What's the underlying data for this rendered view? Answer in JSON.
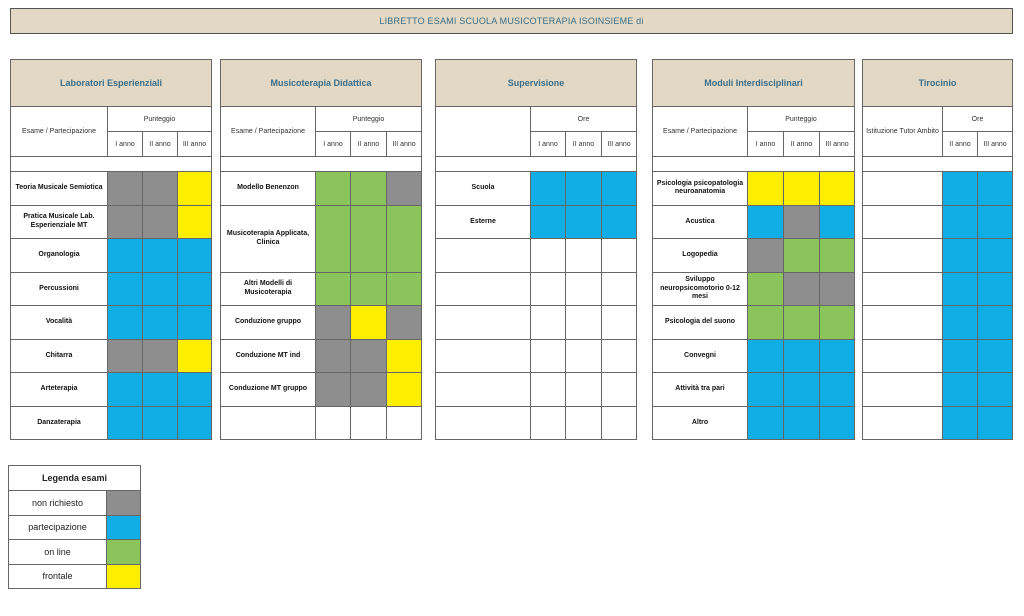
{
  "title": "LIBRETTO ESAMI SCUOLA MUSICOTERAPIA ISOINSIEME di",
  "colors": {
    "grey": "#8e8e8e",
    "blue": "#11aee6",
    "green": "#8bc45a",
    "yellow": "#ffee00",
    "white": "#ffffff"
  },
  "panels": [
    {
      "title": "Laboratori Esperienziali",
      "first_col_header": "Esame / Partecipazione",
      "group_header": "Punteggio",
      "years": [
        "I anno",
        "II anno",
        "III anno"
      ],
      "rows": [
        {
          "label": "Teoria Musicale Semiotica",
          "cells": [
            "grey",
            "grey",
            "yellow"
          ]
        },
        {
          "label": "Pratica Musicale Lab. Esperienziale MT",
          "cells": [
            "grey",
            "grey",
            "yellow"
          ]
        },
        {
          "label": "Organologia",
          "cells": [
            "blue",
            "blue",
            "blue"
          ]
        },
        {
          "label": "Percussioni",
          "cells": [
            "blue",
            "blue",
            "blue"
          ]
        },
        {
          "label": "Vocalità",
          "cells": [
            "blue",
            "blue",
            "blue"
          ]
        },
        {
          "label": "Chitarra",
          "cells": [
            "grey",
            "grey",
            "yellow"
          ]
        },
        {
          "label": "Arteterapia",
          "cells": [
            "blue",
            "blue",
            "blue"
          ]
        },
        {
          "label": "Danzaterapia",
          "cells": [
            "blue",
            "blue",
            "blue"
          ]
        }
      ]
    },
    {
      "title": "Musicoterapia Didattica",
      "first_col_header": "Esame / Partecipazione",
      "group_header": "Punteggio",
      "years": [
        "I anno",
        "II anno",
        "III anno"
      ],
      "rows": [
        {
          "label": "Modello Benenzon",
          "cells": [
            "green",
            "green",
            "grey"
          ]
        },
        {
          "label": "Musicoterapia Applicata, Clinica",
          "span": 2,
          "cells": [
            "green",
            "green",
            "green"
          ]
        },
        {
          "label": "Altri Modelli di Musicoterapia",
          "cells": [
            "green",
            "green",
            "green"
          ]
        },
        {
          "label": "Conduzione gruppo",
          "cells": [
            "grey",
            "yellow",
            "grey"
          ]
        },
        {
          "label": "Conduzione MT ind",
          "cells": [
            "grey",
            "grey",
            "yellow"
          ]
        },
        {
          "label": "Conduzione MT gruppo",
          "cells": [
            "grey",
            "grey",
            "yellow"
          ]
        },
        {
          "label": "",
          "cells": [
            "white",
            "white",
            "white"
          ]
        }
      ]
    },
    {
      "title": "Supervisione",
      "first_col_header": "",
      "group_header": "Ore",
      "years": [
        "I anno",
        "II anno",
        "III anno"
      ],
      "rows": [
        {
          "label": "Scuola",
          "cells": [
            "blue",
            "blue",
            "blue"
          ]
        },
        {
          "label": "Esterne",
          "cells": [
            "blue",
            "blue",
            "blue"
          ]
        },
        {
          "label": "",
          "cells": [
            "white",
            "white",
            "white"
          ]
        },
        {
          "label": "",
          "cells": [
            "white",
            "white",
            "white"
          ]
        },
        {
          "label": "",
          "cells": [
            "white",
            "white",
            "white"
          ]
        },
        {
          "label": "",
          "cells": [
            "white",
            "white",
            "white"
          ]
        },
        {
          "label": "",
          "cells": [
            "white",
            "white",
            "white"
          ]
        },
        {
          "label": "",
          "cells": [
            "white",
            "white",
            "white"
          ]
        }
      ]
    },
    {
      "title": "Moduli Interdisciplinari",
      "first_col_header": "Esame / Partecipazione",
      "group_header": "Punteggio",
      "years": [
        "I anno",
        "II anno",
        "III anno"
      ],
      "rows": [
        {
          "label": "Psicologia psicopatologia neuroanatomia",
          "cells": [
            "yellow",
            "yellow",
            "yellow"
          ]
        },
        {
          "label": "Acustica",
          "cells": [
            "blue",
            "grey",
            "blue"
          ]
        },
        {
          "label": "Logopedia",
          "cells": [
            "grey",
            "green",
            "green"
          ]
        },
        {
          "label": "Sviluppo neuropsicomotorio 0-12 mesi",
          "cells": [
            "green",
            "grey",
            "grey"
          ]
        },
        {
          "label": "Psicologia del suono",
          "cells": [
            "green",
            "green",
            "green"
          ]
        },
        {
          "label": "Convegni",
          "cells": [
            "blue",
            "blue",
            "blue"
          ]
        },
        {
          "label": "Attività tra pari",
          "cells": [
            "blue",
            "blue",
            "blue"
          ]
        },
        {
          "label": "Altro",
          "cells": [
            "blue",
            "blue",
            "blue"
          ]
        }
      ]
    },
    {
      "title": "Tirocinio",
      "first_col_header": "Istituzione Tutor Ambito",
      "group_header": "Ore",
      "years": [
        "II anno",
        "III anno"
      ],
      "rows": [
        {
          "label": "",
          "cells": [
            "blue",
            "blue"
          ]
        },
        {
          "label": "",
          "cells": [
            "blue",
            "blue"
          ]
        },
        {
          "label": "",
          "cells": [
            "blue",
            "blue"
          ]
        },
        {
          "label": "",
          "cells": [
            "blue",
            "blue"
          ]
        },
        {
          "label": "",
          "cells": [
            "blue",
            "blue"
          ]
        },
        {
          "label": "",
          "cells": [
            "blue",
            "blue"
          ]
        },
        {
          "label": "",
          "cells": [
            "blue",
            "blue"
          ]
        },
        {
          "label": "",
          "cells": [
            "blue",
            "blue"
          ]
        }
      ]
    }
  ],
  "legend": {
    "title": "Legenda esami",
    "items": [
      {
        "label": "non richiesto",
        "color": "grey"
      },
      {
        "label": "partecipazione",
        "color": "blue"
      },
      {
        "label": "on line",
        "color": "green"
      },
      {
        "label": "frontale",
        "color": "yellow"
      }
    ]
  }
}
